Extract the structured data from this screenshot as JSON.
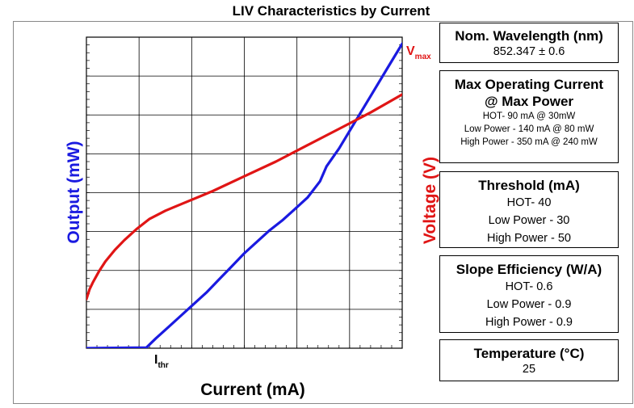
{
  "title": "LIV Characteristics by Current",
  "chart_data": {
    "type": "line",
    "xlabel": "Current (mA)",
    "ylabel": "Output (mW)",
    "y2label": "Voltage (V)",
    "grid": true,
    "series": [
      {
        "name": "Output",
        "color": "#1a1ae0",
        "x": [
          0,
          0.19,
          0.22,
          0.26,
          0.3,
          0.34,
          0.38,
          0.42,
          0.46,
          0.5,
          0.54,
          0.58,
          0.62,
          0.66,
          0.7,
          0.74,
          0.76,
          0.8,
          0.85,
          0.9,
          0.95,
          1.0
        ],
        "y": [
          0,
          0.004,
          0.06,
          0.13,
          0.2,
          0.27,
          0.34,
          0.42,
          0.5,
          0.58,
          0.65,
          0.72,
          0.78,
          0.85,
          0.92,
          1.02,
          1.11,
          1.22,
          1.38,
          1.54,
          1.7,
          1.86
        ]
      },
      {
        "name": "Voltage",
        "color": "#e01515",
        "x": [
          0,
          0.01,
          0.02,
          0.04,
          0.06,
          0.09,
          0.12,
          0.16,
          0.2,
          0.25,
          0.3,
          0.4,
          0.5,
          0.6,
          0.7,
          0.8,
          0.9,
          1.0
        ],
        "y": [
          0.3,
          0.36,
          0.4,
          0.47,
          0.53,
          0.6,
          0.66,
          0.73,
          0.79,
          0.84,
          0.88,
          0.96,
          1.05,
          1.14,
          1.24,
          1.34,
          1.44,
          1.55
        ]
      }
    ],
    "annotations": {
      "threshold": "I",
      "threshold_sub": "thr",
      "vmax": "V",
      "vmax_sub": "max"
    }
  },
  "boxes": {
    "wavelength": {
      "heading": "Nom. Wavelength (nm)",
      "value": "852.347 ± 0.6"
    },
    "max_current": {
      "heading1": "Max Operating Current",
      "heading2": "@ Max Power",
      "lines": [
        "HOT- 90 mA @ 30mW",
        "Low Power - 140 mA @ 80 mW",
        "High Power - 350 mA @ 240 mW"
      ]
    },
    "threshold": {
      "heading": "Threshold (mA)",
      "lines": [
        "HOT- 40",
        "Low Power - 30",
        "High Power - 50"
      ]
    },
    "slope": {
      "heading": "Slope Efficiency (W/A)",
      "lines": [
        "HOT- 0.6",
        "Low Power - 0.9",
        "High Power - 0.9"
      ]
    },
    "temperature": {
      "heading": "Temperature (°C)",
      "value": "25"
    }
  }
}
